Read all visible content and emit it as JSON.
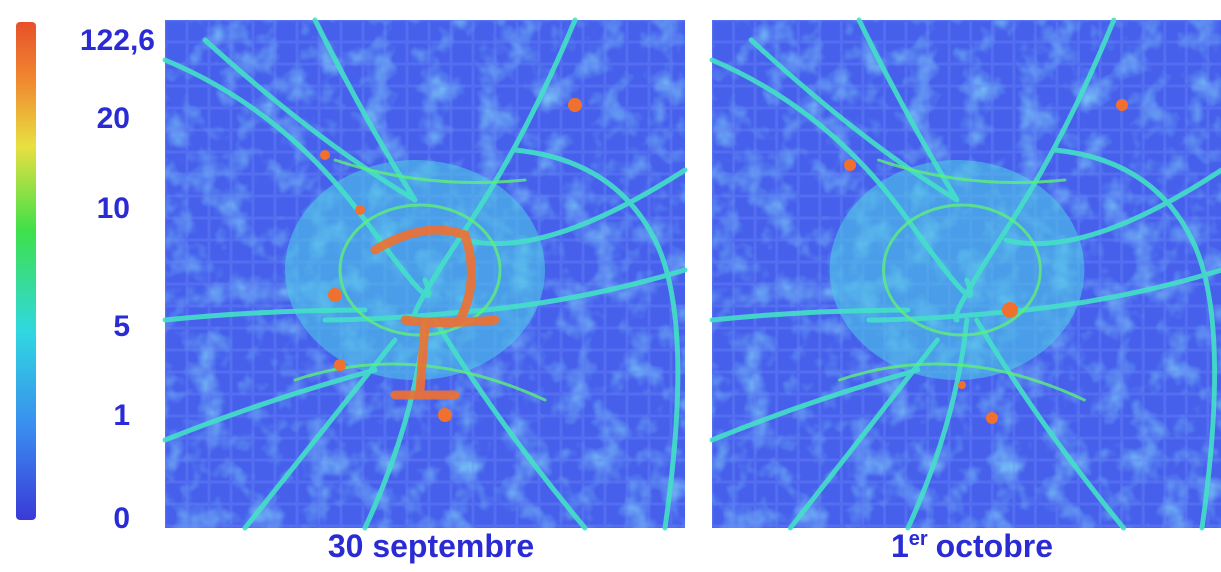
{
  "legend": {
    "labels": [
      "122,6",
      "20",
      "10",
      "5",
      "1",
      "0"
    ]
  },
  "maps": [
    {
      "caption": {
        "number": "30 septembre"
      }
    },
    {
      "caption": {
        "number": "1",
        "suffix": "er",
        "rest": "octobre"
      }
    }
  ]
}
